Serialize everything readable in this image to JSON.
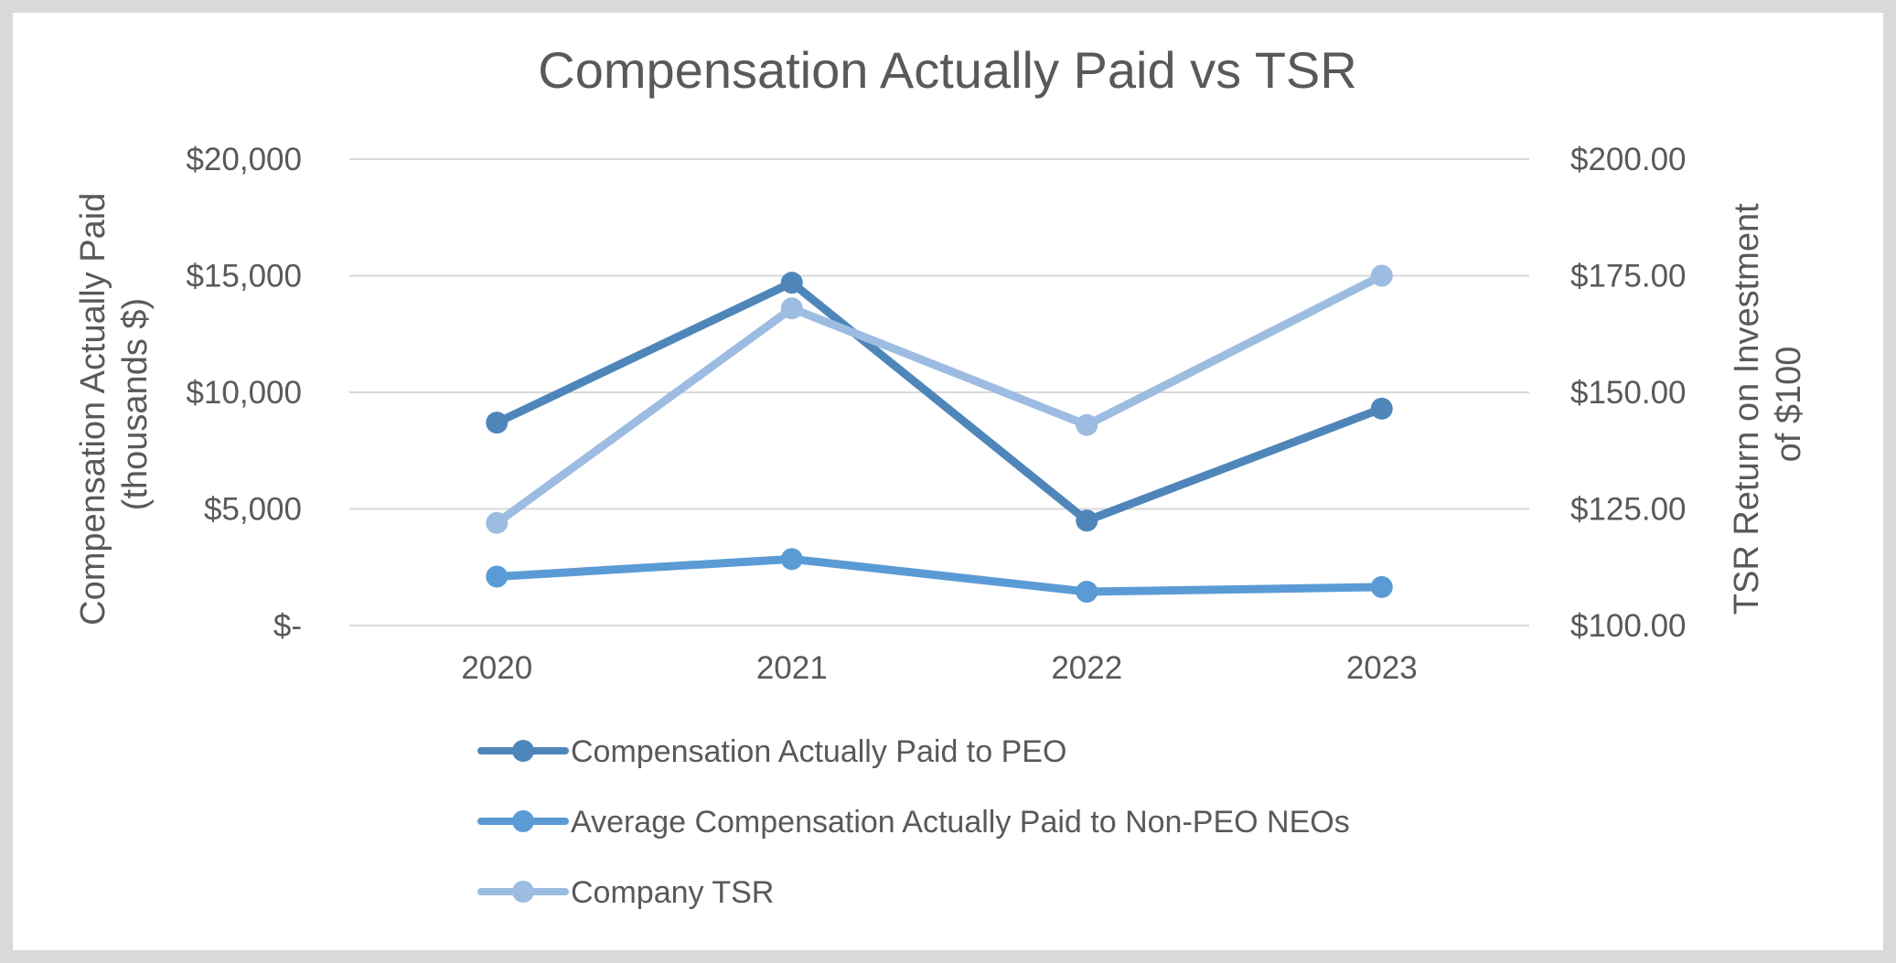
{
  "chart_data": {
    "type": "line",
    "title": "Compensation Actually Paid vs TSR",
    "categories": [
      "2020",
      "2021",
      "2022",
      "2023"
    ],
    "y_left": {
      "label_lines": [
        "Compensation Actually Paid",
        "(thousands $)"
      ],
      "range": [
        0,
        20000
      ],
      "ticks": [
        0,
        5000,
        10000,
        15000,
        20000
      ],
      "tick_labels": [
        "$-",
        "$5,000",
        "$10,000",
        "$15,000",
        "$20,000"
      ]
    },
    "y_right": {
      "label_lines": [
        "TSR Return on Investment",
        "of $100"
      ],
      "range": [
        100,
        200
      ],
      "ticks": [
        100,
        125,
        150,
        175,
        200
      ],
      "tick_labels": [
        "$100.00",
        "$125.00",
        "$150.00",
        "$175.00",
        "$200.00"
      ]
    },
    "grid": true,
    "legend_position": "bottom",
    "series": [
      {
        "name": "Compensation Actually Paid to PEO",
        "axis": "left",
        "color": "#4F86BA",
        "values": [
          8700,
          14700,
          4500,
          9300
        ]
      },
      {
        "name": "Average Compensation Actually Paid to Non-PEO NEOs",
        "axis": "left",
        "color": "#5B9BD5",
        "values": [
          2100,
          2850,
          1450,
          1650
        ]
      },
      {
        "name": "Company TSR",
        "axis": "right",
        "color": "#9DBCE1",
        "values": [
          122,
          168,
          143,
          175
        ]
      }
    ]
  }
}
